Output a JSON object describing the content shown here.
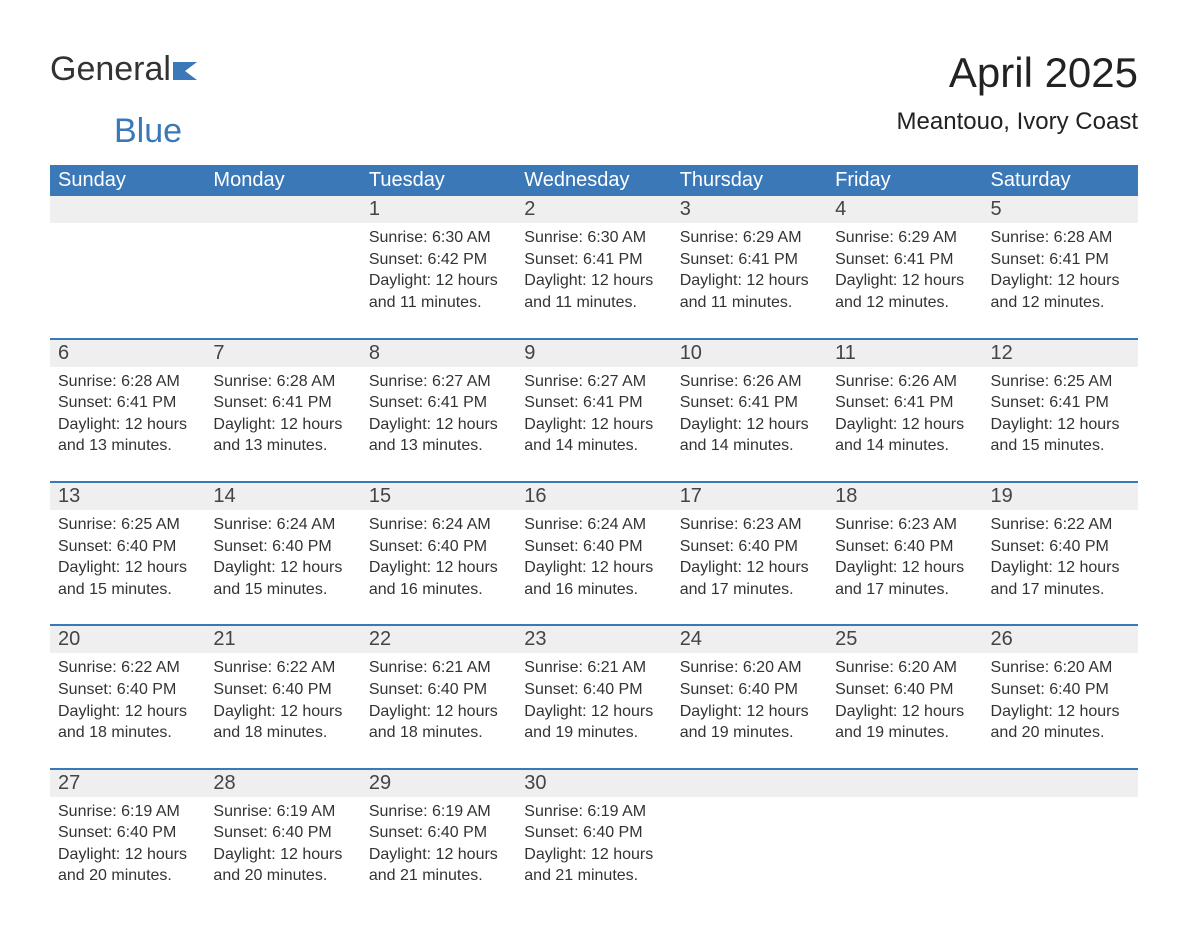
{
  "brand": {
    "word1": "General",
    "word2": "Blue",
    "color_word1": "#333333",
    "color_word2": "#3b78b8",
    "flag_color": "#3b78b8"
  },
  "title": "April 2025",
  "location": "Meantouo, Ivory Coast",
  "colors": {
    "header_bg": "#3b78b8",
    "header_text": "#ffffff",
    "daynum_bg": "#efefef",
    "week_divider": "#3b78b8",
    "page_bg": "#ffffff",
    "body_text": "#333333"
  },
  "fonts": {
    "title_size_pt": 32,
    "location_size_pt": 18,
    "header_size_pt": 15,
    "daynum_size_pt": 15,
    "body_size_pt": 12
  },
  "days_of_week": [
    "Sunday",
    "Monday",
    "Tuesday",
    "Wednesday",
    "Thursday",
    "Friday",
    "Saturday"
  ],
  "weeks": [
    [
      {
        "num": "",
        "sunrise": "",
        "sunset": "",
        "daylight": ""
      },
      {
        "num": "",
        "sunrise": "",
        "sunset": "",
        "daylight": ""
      },
      {
        "num": "1",
        "sunrise": "Sunrise: 6:30 AM",
        "sunset": "Sunset: 6:42 PM",
        "daylight": "Daylight: 12 hours and 11 minutes."
      },
      {
        "num": "2",
        "sunrise": "Sunrise: 6:30 AM",
        "sunset": "Sunset: 6:41 PM",
        "daylight": "Daylight: 12 hours and 11 minutes."
      },
      {
        "num": "3",
        "sunrise": "Sunrise: 6:29 AM",
        "sunset": "Sunset: 6:41 PM",
        "daylight": "Daylight: 12 hours and 11 minutes."
      },
      {
        "num": "4",
        "sunrise": "Sunrise: 6:29 AM",
        "sunset": "Sunset: 6:41 PM",
        "daylight": "Daylight: 12 hours and 12 minutes."
      },
      {
        "num": "5",
        "sunrise": "Sunrise: 6:28 AM",
        "sunset": "Sunset: 6:41 PM",
        "daylight": "Daylight: 12 hours and 12 minutes."
      }
    ],
    [
      {
        "num": "6",
        "sunrise": "Sunrise: 6:28 AM",
        "sunset": "Sunset: 6:41 PM",
        "daylight": "Daylight: 12 hours and 13 minutes."
      },
      {
        "num": "7",
        "sunrise": "Sunrise: 6:28 AM",
        "sunset": "Sunset: 6:41 PM",
        "daylight": "Daylight: 12 hours and 13 minutes."
      },
      {
        "num": "8",
        "sunrise": "Sunrise: 6:27 AM",
        "sunset": "Sunset: 6:41 PM",
        "daylight": "Daylight: 12 hours and 13 minutes."
      },
      {
        "num": "9",
        "sunrise": "Sunrise: 6:27 AM",
        "sunset": "Sunset: 6:41 PM",
        "daylight": "Daylight: 12 hours and 14 minutes."
      },
      {
        "num": "10",
        "sunrise": "Sunrise: 6:26 AM",
        "sunset": "Sunset: 6:41 PM",
        "daylight": "Daylight: 12 hours and 14 minutes."
      },
      {
        "num": "11",
        "sunrise": "Sunrise: 6:26 AM",
        "sunset": "Sunset: 6:41 PM",
        "daylight": "Daylight: 12 hours and 14 minutes."
      },
      {
        "num": "12",
        "sunrise": "Sunrise: 6:25 AM",
        "sunset": "Sunset: 6:41 PM",
        "daylight": "Daylight: 12 hours and 15 minutes."
      }
    ],
    [
      {
        "num": "13",
        "sunrise": "Sunrise: 6:25 AM",
        "sunset": "Sunset: 6:40 PM",
        "daylight": "Daylight: 12 hours and 15 minutes."
      },
      {
        "num": "14",
        "sunrise": "Sunrise: 6:24 AM",
        "sunset": "Sunset: 6:40 PM",
        "daylight": "Daylight: 12 hours and 15 minutes."
      },
      {
        "num": "15",
        "sunrise": "Sunrise: 6:24 AM",
        "sunset": "Sunset: 6:40 PM",
        "daylight": "Daylight: 12 hours and 16 minutes."
      },
      {
        "num": "16",
        "sunrise": "Sunrise: 6:24 AM",
        "sunset": "Sunset: 6:40 PM",
        "daylight": "Daylight: 12 hours and 16 minutes."
      },
      {
        "num": "17",
        "sunrise": "Sunrise: 6:23 AM",
        "sunset": "Sunset: 6:40 PM",
        "daylight": "Daylight: 12 hours and 17 minutes."
      },
      {
        "num": "18",
        "sunrise": "Sunrise: 6:23 AM",
        "sunset": "Sunset: 6:40 PM",
        "daylight": "Daylight: 12 hours and 17 minutes."
      },
      {
        "num": "19",
        "sunrise": "Sunrise: 6:22 AM",
        "sunset": "Sunset: 6:40 PM",
        "daylight": "Daylight: 12 hours and 17 minutes."
      }
    ],
    [
      {
        "num": "20",
        "sunrise": "Sunrise: 6:22 AM",
        "sunset": "Sunset: 6:40 PM",
        "daylight": "Daylight: 12 hours and 18 minutes."
      },
      {
        "num": "21",
        "sunrise": "Sunrise: 6:22 AM",
        "sunset": "Sunset: 6:40 PM",
        "daylight": "Daylight: 12 hours and 18 minutes."
      },
      {
        "num": "22",
        "sunrise": "Sunrise: 6:21 AM",
        "sunset": "Sunset: 6:40 PM",
        "daylight": "Daylight: 12 hours and 18 minutes."
      },
      {
        "num": "23",
        "sunrise": "Sunrise: 6:21 AM",
        "sunset": "Sunset: 6:40 PM",
        "daylight": "Daylight: 12 hours and 19 minutes."
      },
      {
        "num": "24",
        "sunrise": "Sunrise: 6:20 AM",
        "sunset": "Sunset: 6:40 PM",
        "daylight": "Daylight: 12 hours and 19 minutes."
      },
      {
        "num": "25",
        "sunrise": "Sunrise: 6:20 AM",
        "sunset": "Sunset: 6:40 PM",
        "daylight": "Daylight: 12 hours and 19 minutes."
      },
      {
        "num": "26",
        "sunrise": "Sunrise: 6:20 AM",
        "sunset": "Sunset: 6:40 PM",
        "daylight": "Daylight: 12 hours and 20 minutes."
      }
    ],
    [
      {
        "num": "27",
        "sunrise": "Sunrise: 6:19 AM",
        "sunset": "Sunset: 6:40 PM",
        "daylight": "Daylight: 12 hours and 20 minutes."
      },
      {
        "num": "28",
        "sunrise": "Sunrise: 6:19 AM",
        "sunset": "Sunset: 6:40 PM",
        "daylight": "Daylight: 12 hours and 20 minutes."
      },
      {
        "num": "29",
        "sunrise": "Sunrise: 6:19 AM",
        "sunset": "Sunset: 6:40 PM",
        "daylight": "Daylight: 12 hours and 21 minutes."
      },
      {
        "num": "30",
        "sunrise": "Sunrise: 6:19 AM",
        "sunset": "Sunset: 6:40 PM",
        "daylight": "Daylight: 12 hours and 21 minutes."
      },
      {
        "num": "",
        "sunrise": "",
        "sunset": "",
        "daylight": ""
      },
      {
        "num": "",
        "sunrise": "",
        "sunset": "",
        "daylight": ""
      },
      {
        "num": "",
        "sunrise": "",
        "sunset": "",
        "daylight": ""
      }
    ]
  ]
}
